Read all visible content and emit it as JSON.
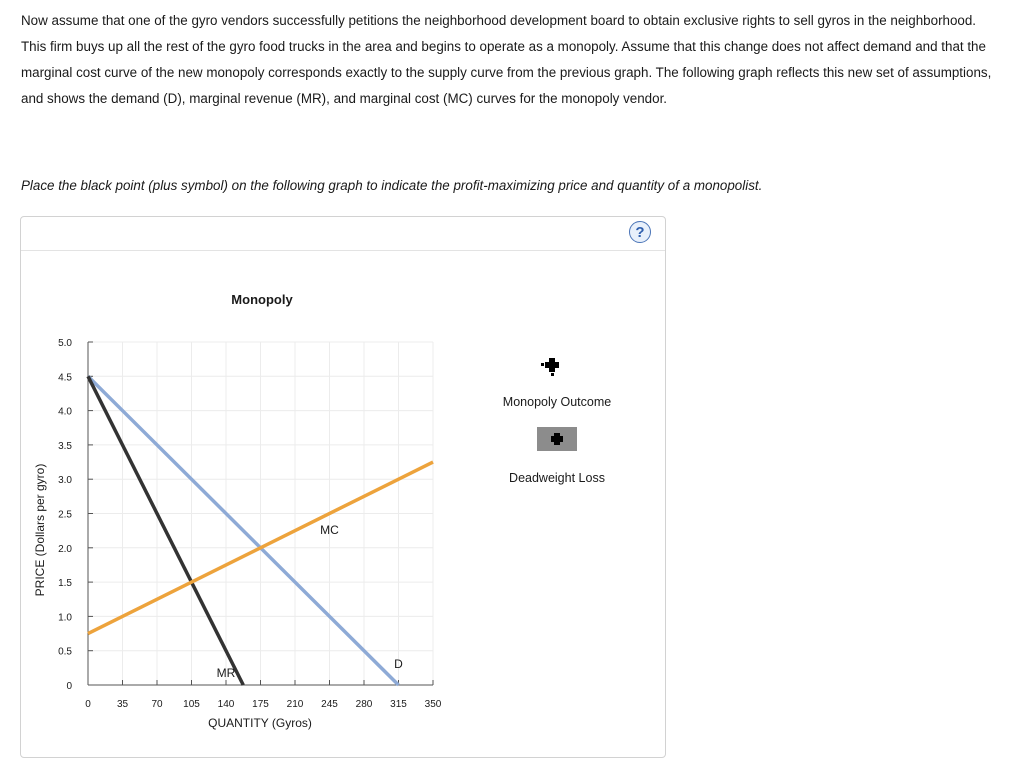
{
  "intro_text": "Now assume that one of the gyro vendors successfully petitions the neighborhood development board to obtain exclusive rights to sell gyros in the neighborhood. This firm buys up all the rest of the gyro food trucks in the area and begins to operate as a monopoly. Assume that this change does not affect demand and that the marginal cost curve of the new monopoly corresponds exactly to the supply curve from the previous graph. The following graph reflects this new set of assumptions, and shows the demand (D), marginal revenue (MR), and marginal cost (MC) curves for the monopoly vendor.",
  "instruction_text": "Place the black point (plus symbol) on the following graph to indicate the profit-maximizing price and quantity of a monopolist.",
  "help_label": "?",
  "legend": {
    "monopoly_outcome_label": "Monopoly Outcome",
    "deadweight_loss_label": "Deadweight Loss",
    "monopoly_outcome_color": "#000000",
    "deadweight_loss_color": "#8c8c8c"
  },
  "chart_data": {
    "type": "line",
    "title": "Monopoly",
    "xlabel": "QUANTITY (Gyros)",
    "ylabel": "PRICE (Dollars per gyro)",
    "xlim": [
      0,
      350
    ],
    "ylim": [
      0,
      5.0
    ],
    "x_ticks": [
      0,
      35,
      70,
      105,
      140,
      175,
      210,
      245,
      280,
      315,
      350
    ],
    "y_ticks": [
      0,
      0.5,
      1.0,
      1.5,
      2.0,
      2.5,
      3.0,
      3.5,
      4.0,
      4.5,
      5.0
    ],
    "y_tick_labels": [
      "0",
      "0.5",
      "1.0",
      "1.5",
      "2.0",
      "2.5",
      "3.0",
      "3.5",
      "4.0",
      "4.5",
      "5.0"
    ],
    "grid": true,
    "series": [
      {
        "name": "D",
        "color": "#8eaad6",
        "x": [
          0,
          315
        ],
        "y": [
          4.5,
          0
        ]
      },
      {
        "name": "MR",
        "color": "#333333",
        "x": [
          0,
          157.5
        ],
        "y": [
          4.5,
          0
        ]
      },
      {
        "name": "MC",
        "color": "#eda33c",
        "x": [
          0,
          350
        ],
        "y": [
          0.75,
          3.25
        ]
      }
    ]
  }
}
